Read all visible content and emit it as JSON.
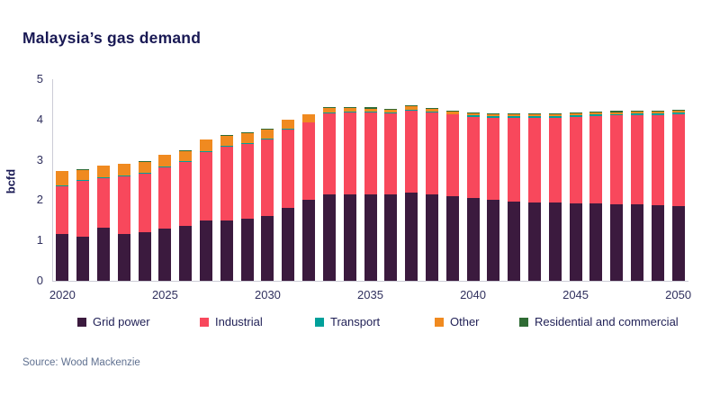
{
  "page": {
    "title": "Malaysia’s gas demand",
    "source": "Source: Wood Mackenzie"
  },
  "colors": {
    "grid_power": "#3B1A3E",
    "industrial": "#F8485C",
    "transport": "#00A09A",
    "other": "#F08A20",
    "residential": "#2F6B34",
    "title_text": "#191954",
    "axis_text": "#30305E",
    "axis_line": "#CCCCD6",
    "source_text": "#5F7090"
  },
  "chart_data": {
    "type": "bar",
    "stacked": true,
    "title": "Malaysia’s gas demand",
    "xlabel": "",
    "ylabel": "bcfd",
    "ylim": [
      0,
      5
    ],
    "yticks": [
      0,
      1,
      2,
      3,
      4,
      5
    ],
    "xticks": [
      2020,
      2025,
      2030,
      2035,
      2040,
      2045,
      2050
    ],
    "grid": false,
    "legend_position": "bottom",
    "categories": [
      2020,
      2021,
      2022,
      2023,
      2024,
      2025,
      2026,
      2027,
      2028,
      2029,
      2030,
      2031,
      2032,
      2033,
      2034,
      2035,
      2036,
      2037,
      2038,
      2039,
      2040,
      2041,
      2042,
      2043,
      2044,
      2045,
      2046,
      2047,
      2048,
      2049,
      2050
    ],
    "series": [
      {
        "name": "Grid power",
        "color": "#3B1A3E",
        "values": [
          1.15,
          1.1,
          1.32,
          1.15,
          1.2,
          1.3,
          1.36,
          1.5,
          1.5,
          1.55,
          1.6,
          1.8,
          2.0,
          2.15,
          2.15,
          2.15,
          2.15,
          2.18,
          2.15,
          2.1,
          2.05,
          2.0,
          1.97,
          1.95,
          1.95,
          1.93,
          1.93,
          1.9,
          1.9,
          1.87,
          1.85
        ]
      },
      {
        "name": "Industrial",
        "color": "#F8485C",
        "values": [
          1.2,
          1.38,
          1.23,
          1.45,
          1.45,
          1.52,
          1.58,
          1.7,
          1.82,
          1.85,
          1.9,
          1.95,
          1.92,
          2.0,
          2.02,
          2.02,
          2.0,
          2.05,
          2.02,
          2.02,
          2.02,
          2.05,
          2.08,
          2.1,
          2.1,
          2.14,
          2.16,
          2.2,
          2.21,
          2.24,
          2.28
        ]
      },
      {
        "name": "Transport",
        "color": "#00A09A",
        "values": [
          0.01,
          0.02,
          0.02,
          0.02,
          0.02,
          0.02,
          0.02,
          0.02,
          0.02,
          0.02,
          0.02,
          0.02,
          0.02,
          0.02,
          0.02,
          0.02,
          0.02,
          0.02,
          0.02,
          0.02,
          0.03,
          0.03,
          0.03,
          0.03,
          0.04,
          0.04,
          0.04,
          0.04,
          0.04,
          0.04,
          0.04
        ]
      },
      {
        "name": "Other",
        "color": "#F08A20",
        "values": [
          0.36,
          0.25,
          0.28,
          0.28,
          0.28,
          0.28,
          0.26,
          0.28,
          0.26,
          0.25,
          0.24,
          0.22,
          0.18,
          0.12,
          0.1,
          0.08,
          0.07,
          0.08,
          0.07,
          0.06,
          0.05,
          0.05,
          0.04,
          0.04,
          0.04,
          0.04,
          0.04,
          0.04,
          0.04,
          0.04,
          0.04
        ]
      },
      {
        "name": "Residential and commercial",
        "color": "#2F6B34",
        "values": [
          0.01,
          0.01,
          0.01,
          0.01,
          0.01,
          0.01,
          0.01,
          0.01,
          0.01,
          0.01,
          0.01,
          0.01,
          0.02,
          0.02,
          0.03,
          0.03,
          0.03,
          0.03,
          0.03,
          0.03,
          0.03,
          0.03,
          0.03,
          0.03,
          0.03,
          0.03,
          0.03,
          0.03,
          0.03,
          0.03,
          0.03
        ]
      }
    ]
  },
  "legend": {
    "items": [
      {
        "label": "Grid power",
        "color": "#3B1A3E"
      },
      {
        "label": "Industrial",
        "color": "#F8485C"
      },
      {
        "label": "Transport",
        "color": "#00A09A"
      },
      {
        "label": "Other",
        "color": "#F08A20"
      },
      {
        "label": "Residential and commercial",
        "color": "#2F6B34"
      }
    ]
  }
}
